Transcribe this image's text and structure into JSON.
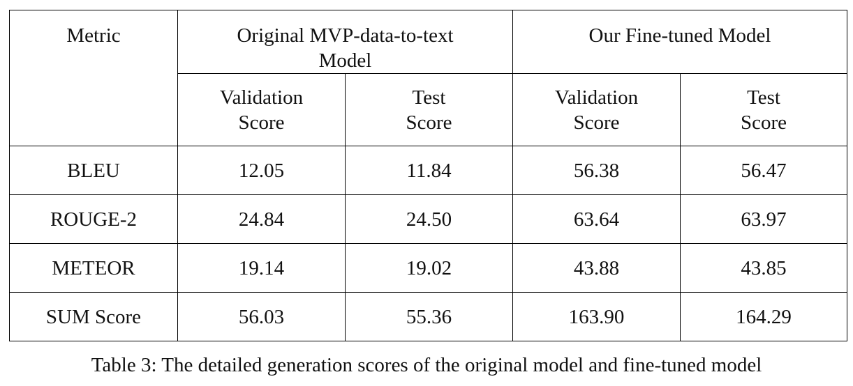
{
  "table": {
    "metric_header": "Metric",
    "groups": [
      {
        "line1": "Original MVP-data-to-text",
        "line2": "Model"
      },
      {
        "line1": "Our Fine-tuned Model",
        "line2": ""
      }
    ],
    "subheaders": [
      {
        "line1": "Validation",
        "line2": "Score"
      },
      {
        "line1": "Test",
        "line2": "Score"
      },
      {
        "line1": "Validation",
        "line2": "Score"
      },
      {
        "line1": "Test",
        "line2": "Score"
      }
    ],
    "rows": [
      {
        "metric": "BLEU",
        "values": [
          "12.05",
          "11.84",
          "56.38",
          "56.47"
        ]
      },
      {
        "metric": "ROUGE-2",
        "values": [
          "24.84",
          "24.50",
          "63.64",
          "63.97"
        ]
      },
      {
        "metric": "METEOR",
        "values": [
          "19.14",
          "19.02",
          "43.88",
          "43.85"
        ]
      },
      {
        "metric": "SUM Score",
        "values": [
          "56.03",
          "55.36",
          "163.90",
          "164.29"
        ]
      }
    ]
  },
  "caption": "Table 3: The detailed generation scores of the original model and fine-tuned model"
}
